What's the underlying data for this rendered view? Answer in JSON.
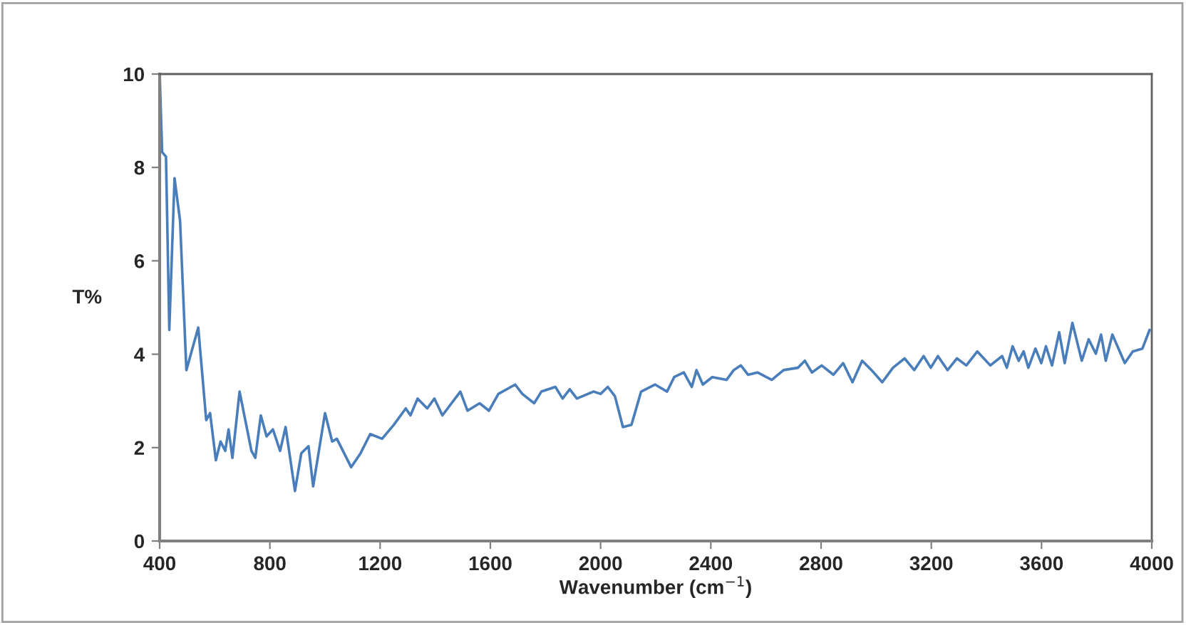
{
  "chart_data": {
    "type": "line",
    "xlabel": "Wavenumber (cm$^{−1}$)",
    "ylabel": "T%",
    "xlim": [
      400,
      4000
    ],
    "xticks": [
      400,
      800,
      1200,
      1600,
      2000,
      2400,
      2800,
      3200,
      3600,
      4000
    ],
    "ylim": [
      0,
      10
    ],
    "yticks": [
      0,
      2,
      4,
      6,
      8,
      10
    ],
    "grid": false,
    "marker": "none",
    "line_style": "solid",
    "series": [
      {
        "color": "#4a7ebb",
        "x": [
          400,
          409,
          423,
          435,
          454,
          474,
          497,
          540,
          569,
          583,
          604,
          621,
          638,
          650,
          664,
          690,
          733,
          747,
          767,
          788,
          811,
          837,
          857,
          891,
          914,
          940,
          957,
          1000,
          1026,
          1043,
          1095,
          1129,
          1164,
          1207,
          1250,
          1293,
          1310,
          1336,
          1371,
          1397,
          1426,
          1491,
          1517,
          1561,
          1595,
          1629,
          1690,
          1716,
          1759,
          1785,
          1836,
          1862,
          1888,
          1914,
          1974,
          2000,
          2026,
          2052,
          2081,
          2112,
          2147,
          2198,
          2241,
          2267,
          2302,
          2331,
          2348,
          2371,
          2405,
          2457,
          2483,
          2509,
          2535,
          2569,
          2621,
          2664,
          2716,
          2741,
          2767,
          2802,
          2845,
          2880,
          2914,
          2949,
          2983,
          3022,
          3061,
          3103,
          3138,
          3172,
          3198,
          3224,
          3259,
          3293,
          3327,
          3367,
          3414,
          3457,
          3474,
          3495,
          3517,
          3535,
          3552,
          3578,
          3599,
          3616,
          3638,
          3664,
          3684,
          3712,
          3746,
          3771,
          3797,
          3816,
          3833,
          3857,
          3902,
          3931,
          3966,
          3992
        ],
        "values": [
          10,
          8.33,
          8.23,
          4.52,
          7.77,
          6.86,
          3.66,
          4.57,
          2.59,
          2.74,
          1.73,
          2.13,
          1.93,
          2.39,
          1.78,
          3.2,
          1.93,
          1.78,
          2.69,
          2.24,
          2.39,
          1.93,
          2.44,
          1.07,
          1.88,
          2.03,
          1.17,
          2.74,
          2.13,
          2.19,
          1.58,
          1.88,
          2.29,
          2.19,
          2.49,
          2.84,
          2.69,
          3.05,
          2.84,
          3.05,
          2.69,
          3.2,
          2.79,
          2.95,
          2.79,
          3.15,
          3.35,
          3.15,
          2.95,
          3.2,
          3.3,
          3.05,
          3.25,
          3.05,
          3.2,
          3.15,
          3.3,
          3.1,
          2.44,
          2.49,
          3.2,
          3.35,
          3.2,
          3.51,
          3.61,
          3.3,
          3.66,
          3.35,
          3.51,
          3.45,
          3.66,
          3.76,
          3.56,
          3.61,
          3.45,
          3.66,
          3.71,
          3.86,
          3.61,
          3.76,
          3.56,
          3.81,
          3.4,
          3.86,
          3.66,
          3.4,
          3.71,
          3.91,
          3.66,
          3.96,
          3.71,
          3.96,
          3.66,
          3.91,
          3.76,
          4.06,
          3.76,
          3.96,
          3.71,
          4.17,
          3.86,
          4.06,
          3.71,
          4.12,
          3.81,
          4.17,
          3.76,
          4.47,
          3.81,
          4.67,
          3.86,
          4.32,
          4.01,
          4.42,
          3.86,
          4.42,
          3.81,
          4.06,
          4.12,
          4.52
        ]
      }
    ]
  }
}
